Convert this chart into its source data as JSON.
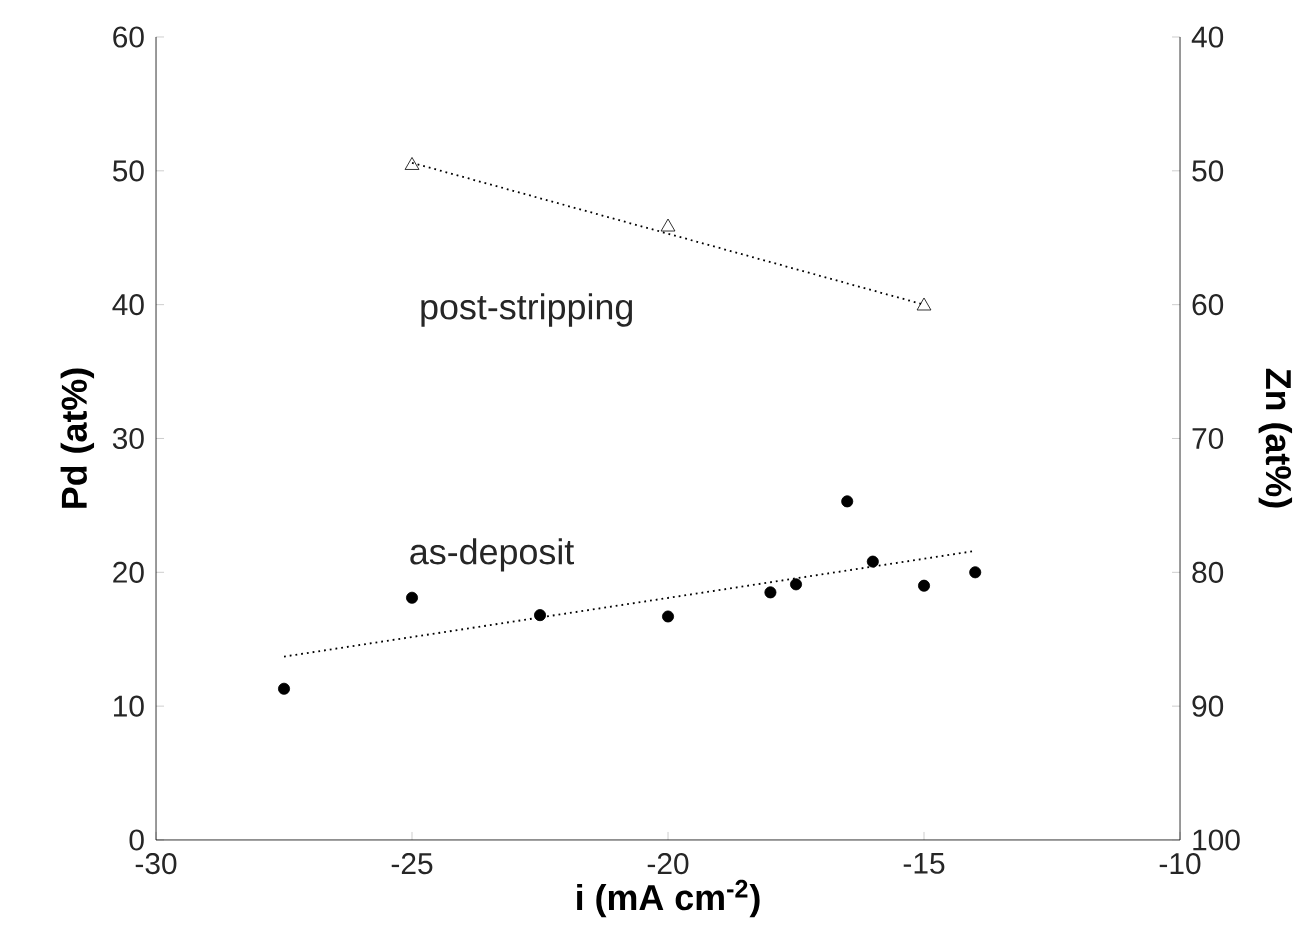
{
  "chart_data": {
    "type": "scatter",
    "xlabel": "i (mA cm$^{-2}$)",
    "ylabel": "Pd (at%)",
    "y2label": "Zn (at%)",
    "xlim": [
      -30,
      -10
    ],
    "xticks": [
      -30,
      -25,
      -20,
      -15,
      -10
    ],
    "ylim": [
      0,
      60
    ],
    "yticks": [
      0,
      10,
      20,
      30,
      40,
      50,
      60
    ],
    "y2lim": [
      100,
      40
    ],
    "y2ticks": [
      40,
      50,
      60,
      70,
      80,
      90,
      100
    ],
    "grid": false,
    "series": [
      {
        "name": "post-stripping",
        "marker": "triangle",
        "color": "#000000",
        "x": [
          -25,
          -20,
          -15
        ],
        "values": [
          50.4,
          45.8,
          39.9
        ]
      },
      {
        "name": "as-deposit",
        "marker": "circle",
        "color": "#000000",
        "x": [
          -27.5,
          -25,
          -22.5,
          -20,
          -18,
          -17.5,
          -16.5,
          -16,
          -15,
          -14
        ],
        "values": [
          11.3,
          18.1,
          16.8,
          16.7,
          18.5,
          19.1,
          25.3,
          20.8,
          19.0,
          20.0
        ]
      },
      {
        "type": "line",
        "line_style": "dotted",
        "marker": "none",
        "color": "#000000",
        "x": [
          -25,
          -15
        ],
        "values": [
          50.6,
          40.0
        ]
      },
      {
        "type": "line",
        "line_style": "dotted",
        "marker": "none",
        "color": "#000000",
        "x": [
          -27.5,
          -14
        ],
        "values": [
          13.7,
          21.6
        ]
      }
    ]
  }
}
